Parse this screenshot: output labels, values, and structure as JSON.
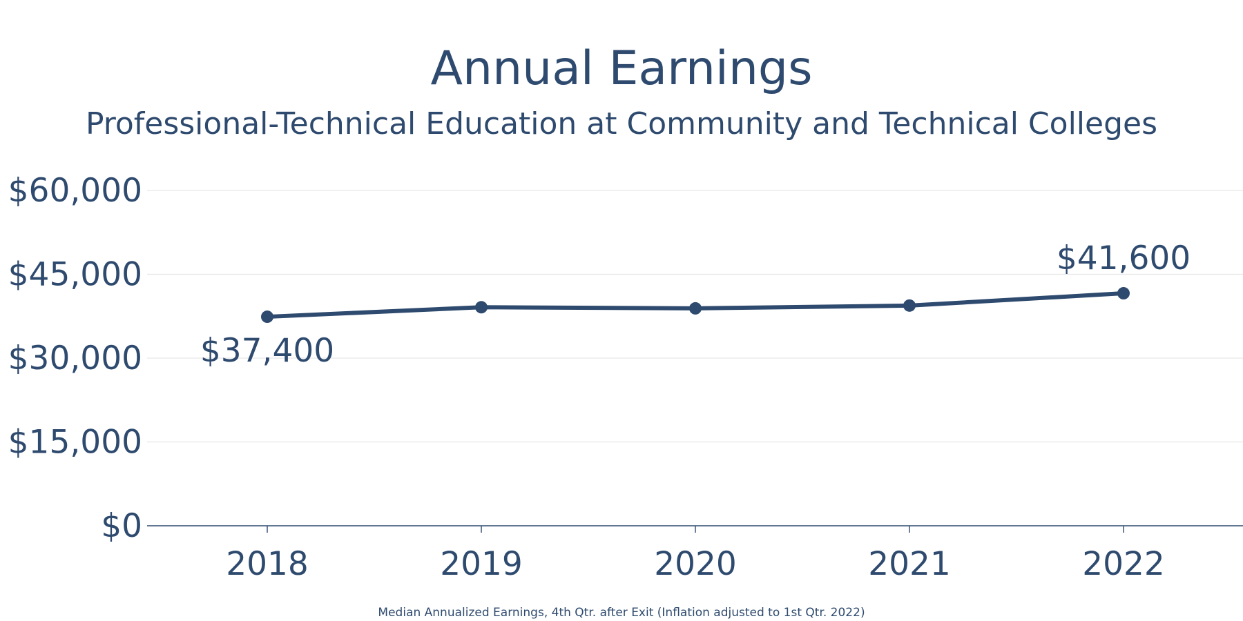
{
  "colors": {
    "accent": "#2e4a6e",
    "grid": "#e6e6e6",
    "background": "#ffffff"
  },
  "chart_data": {
    "type": "line",
    "title": "Annual Earnings",
    "subtitle": "Professional-Technical Education at Community and Technical Colleges",
    "footnote": "Median Annualized Earnings, 4th Qtr. after Exit (Inflation adjusted to 1st Qtr. 2022)",
    "x": [
      "2018",
      "2019",
      "2020",
      "2021",
      "2022"
    ],
    "series": [
      {
        "values": [
          37400,
          39100,
          38900,
          39400,
          41600
        ],
        "color": "#2e4a6e"
      }
    ],
    "data_labels": [
      {
        "index": 0,
        "text": "$37,400",
        "position": "below"
      },
      {
        "index": 4,
        "text": "$41,600",
        "position": "above"
      }
    ],
    "y_ticks": [
      "$0",
      "$15,000",
      "$30,000",
      "$45,000",
      "$60,000"
    ],
    "y_tick_values": [
      0,
      15000,
      30000,
      45000,
      60000
    ],
    "ylim": [
      0,
      60000
    ],
    "grid": true,
    "legend": "none"
  }
}
